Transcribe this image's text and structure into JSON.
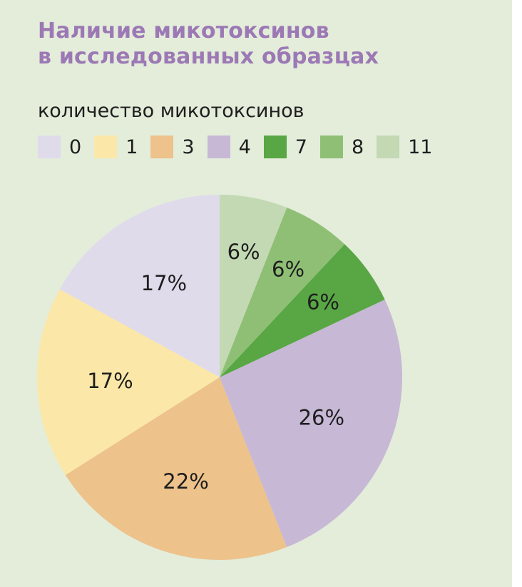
{
  "chart_data": {
    "type": "pie",
    "title": "Наличие микотоксинов\nв исследованных образцах",
    "legend_title": "количество микотоксинов",
    "legend_placement": "top",
    "categories": [
      "0",
      "1",
      "3",
      "4",
      "7",
      "8",
      "11"
    ],
    "values": [
      17,
      17,
      22,
      26,
      6,
      6,
      6
    ],
    "labels": [
      "17%",
      "17%",
      "22%",
      "26%",
      "6%",
      "6%",
      "6%"
    ],
    "colors": [
      "#e0dbeb",
      "#fbe7a7",
      "#edc28b",
      "#c7b8d6",
      "#58a644",
      "#8fbf75",
      "#c3d9b3"
    ]
  }
}
